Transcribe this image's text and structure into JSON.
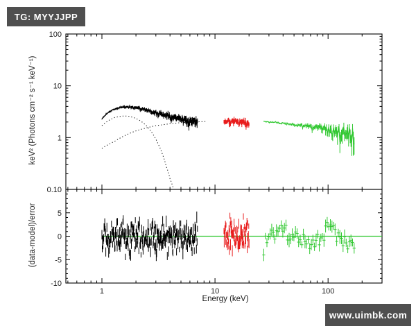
{
  "badges": {
    "tg_label": "TG: MYYJJPP",
    "watermark": "www.uimbk.com",
    "badge_bg": "#4f4f4f",
    "badge_text": "#ffffff"
  },
  "chart_data": {
    "type": "scatter",
    "title": "",
    "xlabel": "Energy (keV)",
    "xscale": "log",
    "xlim": [
      0.48,
      300
    ],
    "x_ticks": [
      {
        "value": 1,
        "label": "1"
      },
      {
        "value": 10,
        "label": "10"
      },
      {
        "value": 100,
        "label": "100"
      }
    ],
    "top_panel": {
      "ylabel": "keV² (Photons cm⁻² s⁻¹ keV⁻¹)",
      "yscale": "log",
      "ylim": [
        0.1,
        100
      ],
      "y_ticks": [
        {
          "value": 100,
          "label": "100"
        },
        {
          "value": 10,
          "label": "10"
        },
        {
          "value": 1,
          "label": "1"
        }
      ],
      "junction_label": "0.10",
      "series": [
        {
          "name": "detector-1-spectrum",
          "color": "#000000",
          "erange": [
            1.0,
            7.0
          ],
          "samples": 270,
          "points": [
            [
              1.0,
              2.3
            ],
            [
              1.1,
              2.9
            ],
            [
              1.25,
              3.45
            ],
            [
              1.45,
              3.8
            ],
            [
              1.7,
              3.95
            ],
            [
              2.0,
              3.8
            ],
            [
              2.4,
              3.45
            ],
            [
              3.0,
              3.0
            ],
            [
              3.6,
              2.7
            ],
            [
              4.3,
              2.45
            ],
            [
              5.0,
              2.3
            ],
            [
              6.0,
              2.15
            ],
            [
              7.0,
              2.05
            ]
          ],
          "noise_frac": [
            0.012,
            0.09
          ],
          "noise_curve": 1.3
        },
        {
          "name": "detector-2-spectrum",
          "color": "#e81c1c",
          "erange": [
            12,
            20
          ],
          "samples": 85,
          "points": [
            [
              12,
              2.1
            ],
            [
              13,
              2.05
            ],
            [
              14,
              2.0
            ],
            [
              15,
              2.1
            ],
            [
              16,
              2.05
            ],
            [
              17,
              2.0
            ],
            [
              18,
              2.05
            ],
            [
              19,
              1.95
            ],
            [
              20,
              1.9
            ]
          ],
          "noise_frac": [
            0.05,
            0.07
          ],
          "noise_curve": 1.0
        },
        {
          "name": "detector-3-spectrum",
          "color": "#2fc72f",
          "erange": [
            27,
            170
          ],
          "samples": 115,
          "points": [
            [
              27,
              2.05
            ],
            [
              33,
              2.0
            ],
            [
              40,
              1.9
            ],
            [
              50,
              1.78
            ],
            [
              60,
              1.68
            ],
            [
              75,
              1.58
            ],
            [
              90,
              1.5
            ],
            [
              100,
              1.45
            ],
            [
              115,
              1.38
            ],
            [
              130,
              1.3
            ],
            [
              145,
              1.2
            ],
            [
              160,
              1.1
            ],
            [
              170,
              1.05
            ]
          ],
          "noise_frac": [
            0.015,
            0.24
          ],
          "noise_curve": 2.4
        }
      ],
      "model_components": [
        {
          "name": "soft-model-component",
          "style": "dotted",
          "color": "#111111",
          "points": [
            [
              1.0,
              1.7
            ],
            [
              1.15,
              2.15
            ],
            [
              1.3,
              2.45
            ],
            [
              1.5,
              2.6
            ],
            [
              1.7,
              2.6
            ],
            [
              1.9,
              2.45
            ],
            [
              2.2,
              2.1
            ],
            [
              2.5,
              1.65
            ],
            [
              2.8,
              1.2
            ],
            [
              3.1,
              0.8
            ],
            [
              3.4,
              0.5
            ],
            [
              3.7,
              0.28
            ],
            [
              4.0,
              0.16
            ],
            [
              4.3,
              0.1
            ]
          ]
        },
        {
          "name": "hard-model-component",
          "style": "dotted",
          "color": "#111111",
          "points": [
            [
              1.0,
              0.62
            ],
            [
              1.3,
              0.85
            ],
            [
              1.6,
              1.1
            ],
            [
              2.0,
              1.35
            ],
            [
              2.5,
              1.55
            ],
            [
              3.0,
              1.7
            ],
            [
              4.0,
              1.85
            ],
            [
              5.0,
              1.95
            ],
            [
              6.5,
              2.0
            ],
            [
              8.5,
              2.05
            ]
          ]
        }
      ]
    },
    "bottom_panel": {
      "ylabel": "(data-model)/error",
      "yscale": "linear",
      "ylim": [
        -10,
        10
      ],
      "y_ticks": [
        {
          "value": 5,
          "label": "5"
        },
        {
          "value": 0,
          "label": "0"
        },
        {
          "value": -5,
          "label": "-5"
        },
        {
          "value": -10,
          "label": "-10"
        }
      ],
      "zero_line": {
        "color": "#2fc72f",
        "xrange": [
          1,
          300
        ],
        "y": 0
      },
      "residuals": [
        {
          "name": "detector-1-residuals",
          "color": "#000000",
          "erange": [
            1,
            7
          ],
          "samples": 270,
          "sigma": 1.6,
          "errbar": 0.9,
          "marker": "bar"
        },
        {
          "name": "detector-2-residuals",
          "color": "#e81c1c",
          "erange": [
            12,
            20
          ],
          "samples": 85,
          "sigma": 1.7,
          "errbar": 0.9,
          "marker": "bar"
        },
        {
          "name": "detector-3-residuals",
          "color": "#2fc72f",
          "erange": [
            27,
            170
          ],
          "samples": 58,
          "sigma": 0.9,
          "errbar": 1.1,
          "marker": "cross",
          "wave_amp": 1.2,
          "start_dip": -4
        }
      ]
    }
  }
}
